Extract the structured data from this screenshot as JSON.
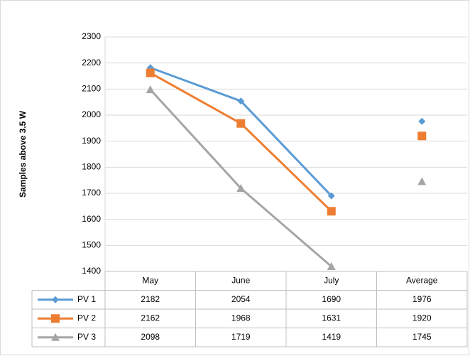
{
  "chart_data": {
    "type": "line",
    "y_label": "Samples above 3.5 W",
    "categories": [
      "May",
      "June",
      "July",
      "Average"
    ],
    "series": [
      {
        "name": "PV 1",
        "color": "#5b9bd5",
        "marker": "diamond",
        "values": [
          2182,
          2054,
          1690,
          1976
        ]
      },
      {
        "name": "PV 2",
        "color": "#ed7d31",
        "marker": "square",
        "values": [
          2162,
          1968,
          1631,
          1920
        ]
      },
      {
        "name": "PV 3",
        "color": "#a5a5a5",
        "marker": "triangle",
        "values": [
          2098,
          1719,
          1419,
          1745
        ]
      }
    ],
    "ylim": [
      1400,
      2300
    ],
    "yticks": [
      1400,
      1500,
      1600,
      1700,
      1800,
      1900,
      2000,
      2100,
      2200,
      2300
    ],
    "grid": true,
    "data_table": true
  }
}
